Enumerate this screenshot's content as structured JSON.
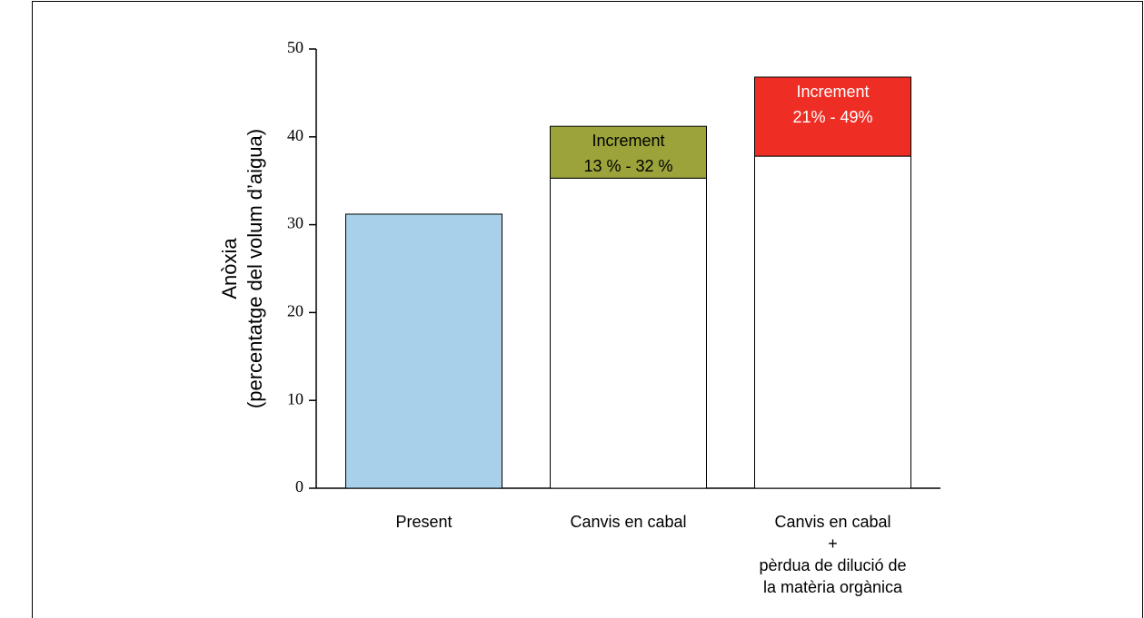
{
  "chart_data": {
    "type": "stacked_bar",
    "ylabel": "Anòxia\n(percentatge del volum d’aigua)",
    "categories": [
      "Present",
      "Canvis en cabal",
      "Canvis en cabal\n+\npèrdua de dilució de\nla matèria orgànica"
    ],
    "series": [
      {
        "values": [
          31.2,
          35.3,
          37.8
        ],
        "colors": [
          "#a8d0ea",
          "#ffffff",
          "#ffffff"
        ]
      },
      {
        "values": [
          null,
          5.9,
          9.0
        ],
        "colors": [
          null,
          "#9ba33a",
          "#ee2e24"
        ],
        "labels": [
          null,
          "Increment\n13 % - 32 %",
          "Increment\n21% - 49%"
        ],
        "label_colors": [
          null,
          "#000000",
          "#ffffff"
        ]
      }
    ],
    "ylim": [
      0,
      50
    ],
    "yticks": [
      0,
      10,
      20,
      30,
      40,
      50
    ]
  }
}
